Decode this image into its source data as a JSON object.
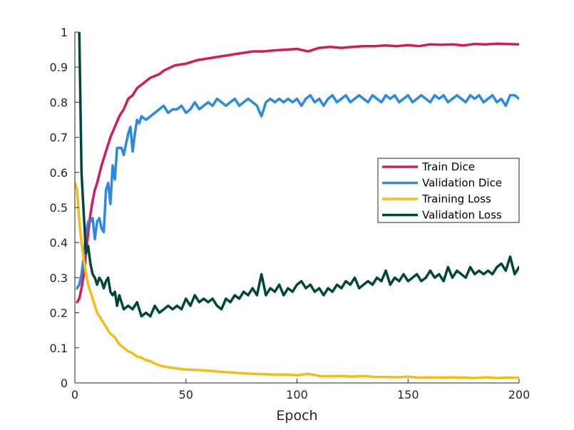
{
  "chart_data": {
    "type": "line",
    "title": "",
    "xlabel": "Epoch",
    "ylabel": "",
    "xlim": [
      0,
      200
    ],
    "ylim": [
      0,
      1
    ],
    "xticks": [
      "0",
      "50",
      "100",
      "150",
      "200"
    ],
    "yticks": [
      "0",
      "0.1",
      "0.2",
      "0.3",
      "0.4",
      "0.5",
      "0.6",
      "0.7",
      "0.8",
      "0.9",
      "1"
    ],
    "grid": false,
    "legend_position": "right",
    "series": [
      {
        "name": "Train Dice",
        "color": "#d41c5c",
        "x": [
          1,
          2,
          3,
          4,
          5,
          6,
          7,
          8,
          9,
          10,
          12,
          14,
          16,
          18,
          20,
          22,
          24,
          26,
          28,
          30,
          32,
          34,
          36,
          38,
          40,
          45,
          50,
          55,
          60,
          65,
          70,
          75,
          80,
          85,
          90,
          95,
          100,
          105,
          110,
          115,
          120,
          125,
          130,
          135,
          140,
          145,
          150,
          155,
          160,
          165,
          170,
          175,
          180,
          185,
          190,
          195,
          200
        ],
        "y": [
          0.23,
          0.24,
          0.27,
          0.31,
          0.37,
          0.43,
          0.48,
          0.52,
          0.55,
          0.57,
          0.62,
          0.66,
          0.7,
          0.73,
          0.76,
          0.78,
          0.81,
          0.82,
          0.84,
          0.85,
          0.86,
          0.87,
          0.875,
          0.88,
          0.89,
          0.905,
          0.91,
          0.92,
          0.925,
          0.93,
          0.935,
          0.94,
          0.945,
          0.945,
          0.948,
          0.95,
          0.952,
          0.945,
          0.955,
          0.958,
          0.955,
          0.958,
          0.96,
          0.96,
          0.962,
          0.96,
          0.963,
          0.96,
          0.965,
          0.964,
          0.965,
          0.962,
          0.966,
          0.965,
          0.967,
          0.966,
          0.965
        ]
      },
      {
        "name": "Validation Dice",
        "color": "#2a8ae0",
        "x": [
          1,
          2,
          3,
          4,
          5,
          6,
          7,
          8,
          9,
          10,
          11,
          12,
          13,
          14,
          15,
          16,
          17,
          18,
          19,
          20,
          21,
          22,
          23,
          24,
          25,
          26,
          27,
          28,
          29,
          30,
          32,
          34,
          36,
          38,
          40,
          42,
          44,
          46,
          48,
          50,
          52,
          54,
          56,
          58,
          60,
          62,
          64,
          66,
          68,
          70,
          72,
          74,
          76,
          78,
          80,
          82,
          84,
          86,
          88,
          90,
          92,
          94,
          96,
          98,
          100,
          102,
          104,
          106,
          108,
          110,
          112,
          114,
          116,
          118,
          120,
          122,
          124,
          126,
          128,
          130,
          132,
          134,
          136,
          138,
          140,
          142,
          144,
          146,
          148,
          150,
          152,
          154,
          156,
          158,
          160,
          162,
          164,
          166,
          168,
          170,
          172,
          174,
          176,
          178,
          180,
          182,
          184,
          186,
          188,
          190,
          192,
          194,
          196,
          198,
          200
        ],
        "y": [
          0.27,
          0.28,
          0.31,
          0.36,
          0.43,
          0.46,
          0.46,
          0.47,
          0.41,
          0.46,
          0.47,
          0.44,
          0.43,
          0.55,
          0.57,
          0.51,
          0.62,
          0.58,
          0.67,
          0.67,
          0.67,
          0.65,
          0.68,
          0.71,
          0.73,
          0.66,
          0.71,
          0.75,
          0.74,
          0.76,
          0.75,
          0.76,
          0.77,
          0.78,
          0.79,
          0.77,
          0.78,
          0.78,
          0.79,
          0.77,
          0.78,
          0.8,
          0.78,
          0.79,
          0.8,
          0.79,
          0.81,
          0.8,
          0.79,
          0.8,
          0.81,
          0.79,
          0.8,
          0.81,
          0.8,
          0.79,
          0.76,
          0.8,
          0.81,
          0.8,
          0.81,
          0.8,
          0.81,
          0.8,
          0.81,
          0.79,
          0.81,
          0.82,
          0.8,
          0.81,
          0.79,
          0.81,
          0.82,
          0.8,
          0.81,
          0.82,
          0.8,
          0.81,
          0.82,
          0.81,
          0.8,
          0.82,
          0.81,
          0.8,
          0.82,
          0.81,
          0.82,
          0.8,
          0.81,
          0.82,
          0.8,
          0.81,
          0.82,
          0.81,
          0.8,
          0.82,
          0.81,
          0.82,
          0.8,
          0.81,
          0.82,
          0.81,
          0.8,
          0.82,
          0.81,
          0.82,
          0.8,
          0.81,
          0.82,
          0.8,
          0.81,
          0.79,
          0.82,
          0.82,
          0.81
        ]
      },
      {
        "name": "Training Loss",
        "color": "#f5bd14",
        "x": [
          0,
          1,
          2,
          3,
          4,
          5,
          6,
          7,
          8,
          9,
          10,
          12,
          14,
          16,
          18,
          20,
          22,
          24,
          26,
          28,
          30,
          32,
          34,
          36,
          38,
          40,
          45,
          50,
          55,
          60,
          65,
          70,
          75,
          80,
          85,
          90,
          95,
          100,
          105,
          110,
          115,
          120,
          125,
          130,
          135,
          140,
          145,
          150,
          155,
          160,
          165,
          170,
          175,
          180,
          185,
          190,
          195,
          200
        ],
        "y": [
          0.57,
          0.55,
          0.46,
          0.4,
          0.35,
          0.31,
          0.28,
          0.26,
          0.24,
          0.22,
          0.2,
          0.18,
          0.16,
          0.14,
          0.13,
          0.11,
          0.1,
          0.09,
          0.085,
          0.075,
          0.072,
          0.065,
          0.062,
          0.055,
          0.05,
          0.047,
          0.042,
          0.038,
          0.037,
          0.035,
          0.032,
          0.03,
          0.028,
          0.026,
          0.025,
          0.024,
          0.024,
          0.022,
          0.026,
          0.02,
          0.019,
          0.02,
          0.018,
          0.02,
          0.017,
          0.017,
          0.016,
          0.018,
          0.015,
          0.016,
          0.015,
          0.016,
          0.015,
          0.014,
          0.016,
          0.014,
          0.015,
          0.015
        ]
      },
      {
        "name": "Validation Loss",
        "color": "#00473a",
        "x": [
          2,
          3,
          4,
          5,
          6,
          7,
          8,
          9,
          10,
          11,
          12,
          13,
          14,
          15,
          16,
          17,
          18,
          19,
          20,
          22,
          24,
          26,
          28,
          30,
          32,
          34,
          36,
          38,
          40,
          42,
          44,
          46,
          48,
          50,
          52,
          54,
          56,
          58,
          60,
          62,
          64,
          66,
          68,
          70,
          72,
          74,
          76,
          78,
          80,
          82,
          84,
          86,
          88,
          90,
          92,
          94,
          96,
          98,
          100,
          102,
          104,
          106,
          108,
          110,
          112,
          114,
          116,
          118,
          120,
          122,
          124,
          126,
          128,
          130,
          132,
          134,
          136,
          138,
          140,
          142,
          144,
          146,
          148,
          150,
          152,
          154,
          156,
          158,
          160,
          162,
          164,
          166,
          168,
          170,
          172,
          174,
          176,
          178,
          180,
          182,
          184,
          186,
          188,
          190,
          192,
          194,
          196,
          198,
          200
        ],
        "y": [
          1.0,
          0.6,
          0.48,
          0.37,
          0.39,
          0.34,
          0.31,
          0.3,
          0.28,
          0.3,
          0.29,
          0.27,
          0.29,
          0.3,
          0.26,
          0.25,
          0.26,
          0.22,
          0.25,
          0.21,
          0.22,
          0.21,
          0.23,
          0.19,
          0.2,
          0.19,
          0.22,
          0.2,
          0.21,
          0.22,
          0.21,
          0.22,
          0.21,
          0.24,
          0.22,
          0.25,
          0.23,
          0.24,
          0.23,
          0.24,
          0.22,
          0.21,
          0.24,
          0.23,
          0.25,
          0.24,
          0.26,
          0.25,
          0.27,
          0.25,
          0.31,
          0.25,
          0.27,
          0.26,
          0.28,
          0.25,
          0.27,
          0.26,
          0.28,
          0.29,
          0.27,
          0.28,
          0.26,
          0.27,
          0.25,
          0.27,
          0.26,
          0.28,
          0.27,
          0.29,
          0.28,
          0.3,
          0.27,
          0.28,
          0.29,
          0.28,
          0.3,
          0.29,
          0.32,
          0.28,
          0.3,
          0.29,
          0.31,
          0.29,
          0.3,
          0.31,
          0.29,
          0.3,
          0.32,
          0.3,
          0.31,
          0.29,
          0.33,
          0.3,
          0.32,
          0.31,
          0.3,
          0.33,
          0.31,
          0.32,
          0.31,
          0.32,
          0.31,
          0.33,
          0.34,
          0.32,
          0.36,
          0.31,
          0.33
        ]
      }
    ]
  }
}
